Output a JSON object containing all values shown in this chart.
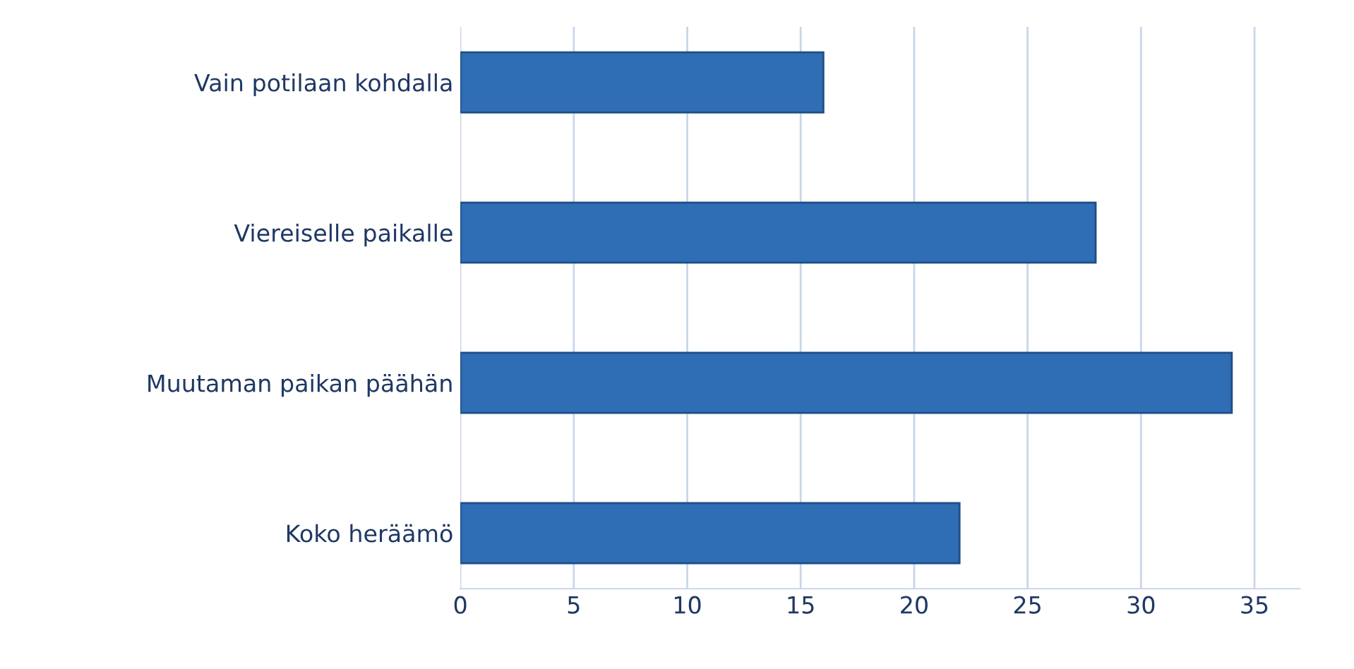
{
  "chart_data": {
    "type": "bar",
    "orientation": "horizontal",
    "categories": [
      "Vain potilaan kohdalla",
      "Viereiselle paikalle",
      "Muutaman paikan päähän",
      "Koko heräämö"
    ],
    "values": [
      16,
      28,
      34,
      22
    ],
    "color": "#2f6db5",
    "xlim": [
      0,
      37
    ],
    "xticks": [
      0,
      5,
      10,
      15,
      20,
      25,
      30,
      35
    ],
    "grid": "x"
  }
}
